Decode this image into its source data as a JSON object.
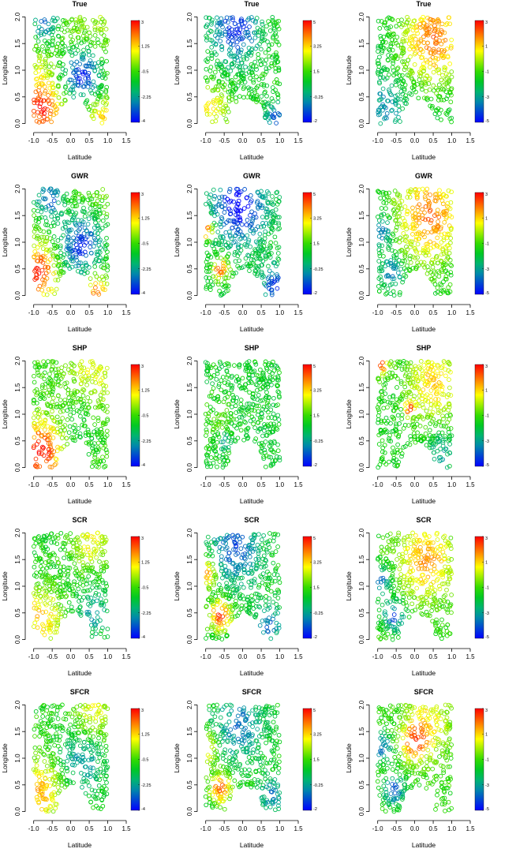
{
  "figure": {
    "rows": [
      "True",
      "GWR",
      "SHP",
      "SCR",
      "SFCR"
    ]
  },
  "chart_data": [
    {
      "type": "scatter",
      "title": "True",
      "xlabel": "Latitude",
      "ylabel": "Longitude",
      "xlim": [
        -1.1,
        1.5
      ],
      "ylim": [
        -0.05,
        2.05
      ],
      "xticks": [
        "-1.0",
        "-0.5",
        "0.0",
        "0.5",
        "1.0",
        "1.5"
      ],
      "yticks": [
        "0.0",
        "0.5",
        "1.0",
        "1.5",
        "2.0"
      ],
      "colorbar": {
        "ticks": [
          "3",
          "1.25",
          "-0.5",
          "-2.25",
          "-4"
        ],
        "range": [
          -4,
          3
        ]
      },
      "grid": false,
      "legend": "colorbar at right",
      "pattern": {
        "base": 0.2,
        "hotspots": [
          {
            "x": -0.8,
            "y": 0.3,
            "r": 0.35,
            "amp": 2.6
          },
          {
            "x": 0.3,
            "y": 0.9,
            "r": 0.4,
            "amp": -3.8
          },
          {
            "x": -0.7,
            "y": 1.9,
            "r": 0.3,
            "amp": -3.2
          },
          {
            "x": 0.8,
            "y": 0.15,
            "r": 0.2,
            "amp": 1.5
          }
        ]
      }
    },
    {
      "type": "scatter",
      "title": "True",
      "xlabel": "Latitude",
      "ylabel": "Longitude",
      "xlim": [
        -1.1,
        1.5
      ],
      "ylim": [
        -0.05,
        2.05
      ],
      "xticks": [
        "-1.0",
        "-0.5",
        "0.0",
        "0.5",
        "1.0",
        "1.5"
      ],
      "yticks": [
        "0.0",
        "0.5",
        "1.0",
        "1.5",
        "2.0"
      ],
      "colorbar": {
        "ticks": [
          "5",
          "3.25",
          "1.5",
          "-0.25",
          "-2"
        ],
        "range": [
          -2,
          5
        ]
      },
      "grid": false,
      "legend": "colorbar at right",
      "pattern": {
        "base": 1.1,
        "hotspots": [
          {
            "x": -0.2,
            "y": 1.8,
            "r": 0.45,
            "amp": -2.8
          },
          {
            "x": -0.8,
            "y": 0.3,
            "r": 0.3,
            "amp": 2.0
          },
          {
            "x": 0.9,
            "y": 0.1,
            "r": 0.2,
            "amp": -2.5
          }
        ]
      }
    },
    {
      "type": "scatter",
      "title": "True",
      "xlabel": "Latitude",
      "ylabel": "Longitude",
      "xlim": [
        -1.1,
        1.5
      ],
      "ylim": [
        -0.05,
        2.05
      ],
      "xticks": [
        "-1.0",
        "-0.5",
        "0.0",
        "0.5",
        "1.0",
        "1.5"
      ],
      "yticks": [
        "0.0",
        "0.5",
        "1.0",
        "1.5",
        "2.0"
      ],
      "colorbar": {
        "ticks": [
          "3",
          "1",
          "-1",
          "-3",
          "-5"
        ],
        "range": [
          -5,
          3
        ]
      },
      "grid": false,
      "legend": "colorbar at right",
      "pattern": {
        "base": -1.8,
        "hotspots": [
          {
            "x": 0.5,
            "y": 1.6,
            "r": 0.6,
            "amp": 3.8
          },
          {
            "x": -0.8,
            "y": 0.3,
            "r": 0.4,
            "amp": -1.6
          }
        ]
      }
    },
    {
      "type": "scatter",
      "title": "GWR",
      "xlabel": "Latitude",
      "ylabel": "Longitude",
      "xlim": [
        -1.1,
        1.5
      ],
      "ylim": [
        -0.05,
        2.05
      ],
      "xticks": [
        "-1.0",
        "-0.5",
        "0.0",
        "0.5",
        "1.0",
        "1.5"
      ],
      "yticks": [
        "0.0",
        "0.5",
        "1.0",
        "1.5",
        "2.0"
      ],
      "colorbar": {
        "ticks": [
          "3",
          "1.25",
          "-0.5",
          "-2.25",
          "-4"
        ],
        "range": [
          -4,
          3
        ]
      },
      "grid": false,
      "legend": "colorbar at right",
      "pattern": {
        "base": 0.0,
        "hotspots": [
          {
            "x": -0.85,
            "y": 0.45,
            "r": 0.3,
            "amp": 3.0
          },
          {
            "x": 0.3,
            "y": 0.95,
            "r": 0.45,
            "amp": -3.6
          },
          {
            "x": -0.6,
            "y": 1.85,
            "r": 0.3,
            "amp": -3.2
          },
          {
            "x": 0.7,
            "y": 0.1,
            "r": 0.2,
            "amp": 2.4
          }
        ]
      }
    },
    {
      "type": "scatter",
      "title": "GWR",
      "xlabel": "Latitude",
      "ylabel": "Longitude",
      "xlim": [
        -1.1,
        1.5
      ],
      "ylim": [
        -0.05,
        2.05
      ],
      "xticks": [
        "-1.0",
        "-0.5",
        "0.0",
        "0.5",
        "1.0",
        "1.5"
      ],
      "yticks": [
        "0.0",
        "0.5",
        "1.0",
        "1.5",
        "2.0"
      ],
      "colorbar": {
        "ticks": [
          "5",
          "3.25",
          "1.5",
          "-0.25",
          "-2"
        ],
        "range": [
          -2,
          5
        ]
      },
      "grid": false,
      "legend": "colorbar at right",
      "pattern": {
        "base": 0.9,
        "hotspots": [
          {
            "x": -0.1,
            "y": 1.7,
            "r": 0.5,
            "amp": -3.0
          },
          {
            "x": -1.0,
            "y": 1.25,
            "r": 0.15,
            "amp": 3.8
          },
          {
            "x": -0.6,
            "y": 0.5,
            "r": 0.15,
            "amp": 3.6
          },
          {
            "x": 0.9,
            "y": 0.2,
            "r": 0.25,
            "amp": -2.5
          }
        ]
      }
    },
    {
      "type": "scatter",
      "title": "GWR",
      "xlabel": "Latitude",
      "ylabel": "Longitude",
      "xlim": [
        -1.1,
        1.5
      ],
      "ylim": [
        -0.05,
        2.05
      ],
      "xticks": [
        "-1.0",
        "-0.5",
        "0.0",
        "0.5",
        "1.0",
        "1.5"
      ],
      "yticks": [
        "0.0",
        "0.5",
        "1.0",
        "1.5",
        "2.0"
      ],
      "colorbar": {
        "ticks": [
          "3",
          "1",
          "-1",
          "-3",
          "-5"
        ],
        "range": [
          -5,
          3
        ]
      },
      "grid": false,
      "legend": "colorbar at right",
      "pattern": {
        "base": -1.6,
        "hotspots": [
          {
            "x": 0.4,
            "y": 1.5,
            "r": 0.6,
            "amp": 3.6
          },
          {
            "x": -0.9,
            "y": 1.2,
            "r": 0.2,
            "amp": -2.5
          },
          {
            "x": -0.6,
            "y": 0.45,
            "r": 0.2,
            "amp": -2.5
          }
        ]
      }
    },
    {
      "type": "scatter",
      "title": "SHP",
      "xlabel": "Latitude",
      "ylabel": "Longitude",
      "xlim": [
        -1.1,
        1.5
      ],
      "ylim": [
        -0.05,
        2.05
      ],
      "xticks": [
        "-1.0",
        "-0.5",
        "0.0",
        "0.5",
        "1.0",
        "1.5"
      ],
      "yticks": [
        "0.0",
        "0.5",
        "1.0",
        "1.5",
        "2.0"
      ],
      "colorbar": {
        "ticks": [
          "3",
          "1.25",
          "-0.5",
          "-2.25",
          "-4"
        ],
        "range": [
          -4,
          3
        ]
      },
      "grid": false,
      "legend": "colorbar at right",
      "pattern": {
        "base": -0.6,
        "hotspots": [
          {
            "x": -0.8,
            "y": 0.3,
            "r": 0.4,
            "amp": 3.6
          },
          {
            "x": 0.6,
            "y": 1.7,
            "r": 0.5,
            "amp": 1.3
          },
          {
            "x": 0.3,
            "y": 0.9,
            "r": 0.4,
            "amp": -0.8
          }
        ]
      }
    },
    {
      "type": "scatter",
      "title": "SHP",
      "xlabel": "Latitude",
      "ylabel": "Longitude",
      "xlim": [
        -1.1,
        1.5
      ],
      "ylim": [
        -0.05,
        2.05
      ],
      "xticks": [
        "-1.0",
        "-0.5",
        "0.0",
        "0.5",
        "1.0",
        "1.5"
      ],
      "yticks": [
        "0.0",
        "0.5",
        "1.0",
        "1.5",
        "2.0"
      ],
      "colorbar": {
        "ticks": [
          "5",
          "3.25",
          "1.5",
          "-0.25",
          "-2"
        ],
        "range": [
          -2,
          5
        ]
      },
      "grid": false,
      "legend": "colorbar at right",
      "pattern": {
        "base": 0.9,
        "hotspots": [
          {
            "x": -0.5,
            "y": 0.5,
            "r": 0.1,
            "amp": -1.8
          },
          {
            "x": -0.7,
            "y": 0.9,
            "r": 0.3,
            "amp": 0.7
          }
        ]
      }
    },
    {
      "type": "scatter",
      "title": "SHP",
      "xlabel": "Latitude",
      "ylabel": "Longitude",
      "xlim": [
        -1.1,
        1.5
      ],
      "ylim": [
        -0.05,
        2.05
      ],
      "xticks": [
        "-1.0",
        "-0.5",
        "0.0",
        "0.5",
        "1.0",
        "1.5"
      ],
      "yticks": [
        "0.0",
        "0.5",
        "1.0",
        "1.5",
        "2.0"
      ],
      "colorbar": {
        "ticks": [
          "3",
          "1",
          "-1",
          "-3",
          "-5"
        ],
        "range": [
          -5,
          3
        ]
      },
      "grid": false,
      "legend": "colorbar at right",
      "pattern": {
        "base": -1.5,
        "hotspots": [
          {
            "x": 0.5,
            "y": 1.6,
            "r": 0.5,
            "amp": 2.6
          },
          {
            "x": -0.9,
            "y": 1.95,
            "r": 0.15,
            "amp": 3.8
          },
          {
            "x": -0.15,
            "y": 1.1,
            "r": 0.1,
            "amp": 3.5
          },
          {
            "x": 0.7,
            "y": 0.25,
            "r": 0.3,
            "amp": -1.5
          }
        ]
      }
    },
    {
      "type": "scatter",
      "title": "SCR",
      "xlabel": "Latitude",
      "ylabel": "Longitude",
      "xlim": [
        -1.1,
        1.5
      ],
      "ylim": [
        -0.05,
        2.05
      ],
      "xticks": [
        "-1.0",
        "-0.5",
        "0.0",
        "0.5",
        "1.0",
        "1.5"
      ],
      "yticks": [
        "0.0",
        "0.5",
        "1.0",
        "1.5",
        "2.0"
      ],
      "colorbar": {
        "ticks": [
          "3",
          "1.25",
          "-0.5",
          "-2.25",
          "-4"
        ],
        "range": [
          -4,
          3
        ]
      },
      "grid": false,
      "legend": "colorbar at right",
      "pattern": {
        "base": -0.9,
        "hotspots": [
          {
            "x": -0.8,
            "y": 0.4,
            "r": 0.4,
            "amp": 2.3
          },
          {
            "x": 0.55,
            "y": 1.8,
            "r": 0.35,
            "amp": 1.8
          },
          {
            "x": 0.6,
            "y": 0.5,
            "r": 0.3,
            "amp": -1.5
          }
        ]
      }
    },
    {
      "type": "scatter",
      "title": "SCR",
      "xlabel": "Latitude",
      "ylabel": "Longitude",
      "xlim": [
        -1.1,
        1.5
      ],
      "ylim": [
        -0.05,
        2.05
      ],
      "xticks": [
        "-1.0",
        "-0.5",
        "0.0",
        "0.5",
        "1.0",
        "1.5"
      ],
      "yticks": [
        "0.0",
        "0.5",
        "1.0",
        "1.5",
        "2.0"
      ],
      "colorbar": {
        "ticks": [
          "5",
          "3.25",
          "1.5",
          "-0.25",
          "-2"
        ],
        "range": [
          -2,
          5
        ]
      },
      "grid": false,
      "legend": "colorbar at right",
      "pattern": {
        "base": 1.0,
        "hotspots": [
          {
            "x": -0.6,
            "y": 0.45,
            "r": 0.2,
            "amp": 3.8
          },
          {
            "x": -1.0,
            "y": 1.25,
            "r": 0.2,
            "amp": 3.0
          },
          {
            "x": -0.2,
            "y": 1.7,
            "r": 0.45,
            "amp": -2.2
          },
          {
            "x": 0.7,
            "y": 0.3,
            "r": 0.25,
            "amp": -2.0
          }
        ]
      }
    },
    {
      "type": "scatter",
      "title": "SCR",
      "xlabel": "Latitude",
      "ylabel": "Longitude",
      "xlim": [
        -1.1,
        1.5
      ],
      "ylim": [
        -0.05,
        2.05
      ],
      "xticks": [
        "-1.0",
        "-0.5",
        "0.0",
        "0.5",
        "1.0",
        "1.5"
      ],
      "yticks": [
        "0.0",
        "0.5",
        "1.0",
        "1.5",
        "2.0"
      ],
      "colorbar": {
        "ticks": [
          "3",
          "1",
          "-1",
          "-3",
          "-5"
        ],
        "range": [
          -5,
          3
        ]
      },
      "grid": false,
      "legend": "colorbar at right",
      "pattern": {
        "base": -1.2,
        "hotspots": [
          {
            "x": 0.3,
            "y": 1.5,
            "r": 0.5,
            "amp": 2.8
          },
          {
            "x": -0.9,
            "y": 1.1,
            "r": 0.2,
            "amp": -2.6
          },
          {
            "x": -0.55,
            "y": 0.45,
            "r": 0.2,
            "amp": -3.0
          }
        ]
      }
    },
    {
      "type": "scatter",
      "title": "SFCR",
      "xlabel": "Latitude",
      "ylabel": "Longitude",
      "xlim": [
        -1.1,
        1.5
      ],
      "ylim": [
        -0.05,
        2.05
      ],
      "xticks": [
        "-1.0",
        "-0.5",
        "0.0",
        "0.5",
        "1.0",
        "1.5"
      ],
      "yticks": [
        "0.0",
        "0.5",
        "1.0",
        "1.5",
        "2.0"
      ],
      "colorbar": {
        "ticks": [
          "3",
          "1.25",
          "-0.5",
          "-2.25",
          "-4"
        ],
        "range": [
          -4,
          3
        ]
      },
      "grid": false,
      "legend": "colorbar at right",
      "pattern": {
        "base": -0.8,
        "hotspots": [
          {
            "x": -0.8,
            "y": 0.35,
            "r": 0.4,
            "amp": 2.4
          },
          {
            "x": 0.3,
            "y": 0.95,
            "r": 0.4,
            "amp": -1.8
          },
          {
            "x": 0.6,
            "y": 1.8,
            "r": 0.35,
            "amp": 1.6
          }
        ]
      }
    },
    {
      "type": "scatter",
      "title": "SFCR",
      "xlabel": "Latitude",
      "ylabel": "Longitude",
      "xlim": [
        -1.1,
        1.5
      ],
      "ylim": [
        -0.05,
        2.05
      ],
      "xticks": [
        "-1.0",
        "-0.5",
        "0.0",
        "0.5",
        "1.0",
        "1.5"
      ],
      "yticks": [
        "0.0",
        "0.5",
        "1.0",
        "1.5",
        "2.0"
      ],
      "colorbar": {
        "ticks": [
          "5",
          "3.25",
          "1.5",
          "-0.25",
          "-2"
        ],
        "range": [
          -2,
          5
        ]
      },
      "grid": false,
      "legend": "colorbar at right",
      "pattern": {
        "base": 1.1,
        "hotspots": [
          {
            "x": -0.6,
            "y": 0.45,
            "r": 0.2,
            "amp": 3.2
          },
          {
            "x": -1.0,
            "y": 1.2,
            "r": 0.2,
            "amp": 2.6
          },
          {
            "x": -0.1,
            "y": 1.6,
            "r": 0.45,
            "amp": -2.0
          },
          {
            "x": 0.8,
            "y": 0.3,
            "r": 0.25,
            "amp": -1.8
          }
        ]
      }
    },
    {
      "type": "scatter",
      "title": "SFCR",
      "xlabel": "Latitude",
      "ylabel": "Longitude",
      "xlim": [
        -1.1,
        1.5
      ],
      "ylim": [
        -0.05,
        2.05
      ],
      "xticks": [
        "-1.0",
        "-0.5",
        "0.0",
        "0.5",
        "1.0",
        "1.5"
      ],
      "yticks": [
        "0.0",
        "0.5",
        "1.0",
        "1.5",
        "2.0"
      ],
      "colorbar": {
        "ticks": [
          "3",
          "1",
          "-1",
          "-3",
          "-5"
        ],
        "range": [
          -5,
          3
        ]
      },
      "grid": false,
      "legend": "colorbar at right",
      "pattern": {
        "base": -1.1,
        "hotspots": [
          {
            "x": 0.0,
            "y": 1.3,
            "r": 0.25,
            "amp": 3.2
          },
          {
            "x": 0.4,
            "y": 1.7,
            "r": 0.4,
            "amp": 1.8
          },
          {
            "x": -0.9,
            "y": 1.2,
            "r": 0.2,
            "amp": -2.8
          },
          {
            "x": -0.55,
            "y": 0.4,
            "r": 0.2,
            "amp": -3.2
          }
        ]
      }
    }
  ]
}
